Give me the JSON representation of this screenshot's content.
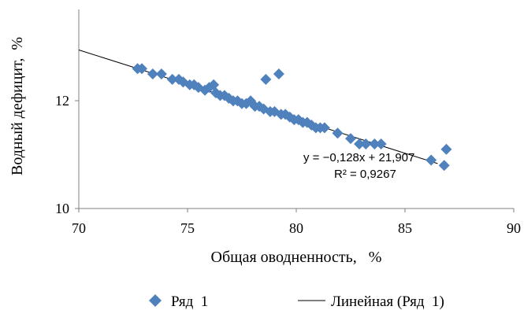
{
  "chart_data": {
    "type": "scatter",
    "xlabel": "Общая оводненность,   %",
    "ylabel": "Водный дефицит,  %",
    "xlim": [
      70,
      90
    ],
    "ylim": [
      10,
      13.7
    ],
    "x_ticks": [
      70,
      75,
      80,
      85,
      90
    ],
    "y_ticks": [
      10,
      12
    ],
    "x_tick_labels": [
      "70",
      "75",
      "80",
      "85",
      "90"
    ],
    "y_tick_labels": [
      "10",
      "12"
    ],
    "grid": false,
    "legend_position": "bottom",
    "series": [
      {
        "name": "Ряд  1",
        "color": "#4F81BD",
        "marker": "diamond",
        "points": [
          {
            "x": 72.7,
            "y": 12.6
          },
          {
            "x": 72.9,
            "y": 12.6
          },
          {
            "x": 73.4,
            "y": 12.5
          },
          {
            "x": 73.8,
            "y": 12.5
          },
          {
            "x": 74.3,
            "y": 12.4
          },
          {
            "x": 74.6,
            "y": 12.4
          },
          {
            "x": 74.8,
            "y": 12.35
          },
          {
            "x": 75.1,
            "y": 12.3
          },
          {
            "x": 75.3,
            "y": 12.3
          },
          {
            "x": 75.5,
            "y": 12.25
          },
          {
            "x": 75.8,
            "y": 12.2
          },
          {
            "x": 76.0,
            "y": 12.25
          },
          {
            "x": 76.2,
            "y": 12.3
          },
          {
            "x": 76.3,
            "y": 12.15
          },
          {
            "x": 76.5,
            "y": 12.1
          },
          {
            "x": 76.7,
            "y": 12.1
          },
          {
            "x": 76.9,
            "y": 12.05
          },
          {
            "x": 77.1,
            "y": 12.0
          },
          {
            "x": 77.3,
            "y": 12.0
          },
          {
            "x": 77.5,
            "y": 11.95
          },
          {
            "x": 77.7,
            "y": 11.95
          },
          {
            "x": 77.9,
            "y": 12.0
          },
          {
            "x": 78.1,
            "y": 11.9
          },
          {
            "x": 78.3,
            "y": 11.9
          },
          {
            "x": 78.5,
            "y": 11.85
          },
          {
            "x": 78.6,
            "y": 12.4
          },
          {
            "x": 78.8,
            "y": 11.8
          },
          {
            "x": 79.0,
            "y": 11.8
          },
          {
            "x": 79.2,
            "y": 12.5
          },
          {
            "x": 79.3,
            "y": 11.75
          },
          {
            "x": 79.5,
            "y": 11.75
          },
          {
            "x": 79.7,
            "y": 11.7
          },
          {
            "x": 79.9,
            "y": 11.65
          },
          {
            "x": 80.1,
            "y": 11.65
          },
          {
            "x": 80.3,
            "y": 11.6
          },
          {
            "x": 80.5,
            "y": 11.6
          },
          {
            "x": 80.7,
            "y": 11.55
          },
          {
            "x": 80.9,
            "y": 11.5
          },
          {
            "x": 81.1,
            "y": 11.5
          },
          {
            "x": 81.3,
            "y": 11.5
          },
          {
            "x": 81.9,
            "y": 11.4
          },
          {
            "x": 82.5,
            "y": 11.3
          },
          {
            "x": 82.9,
            "y": 11.2
          },
          {
            "x": 83.2,
            "y": 11.2
          },
          {
            "x": 83.6,
            "y": 11.2
          },
          {
            "x": 83.9,
            "y": 11.2
          },
          {
            "x": 86.2,
            "y": 10.9
          },
          {
            "x": 86.8,
            "y": 10.8
          },
          {
            "x": 86.9,
            "y": 11.1
          }
        ]
      }
    ],
    "trendline": {
      "name": "Линейная (Ряд  1)",
      "type": "linear",
      "color": "#000000",
      "slope": -0.128,
      "intercept": 21.907,
      "x_range": [
        70,
        86.5
      ],
      "equation_label": "y = −0,128x + 21,907",
      "r2_label": "R² = 0,9267"
    }
  }
}
